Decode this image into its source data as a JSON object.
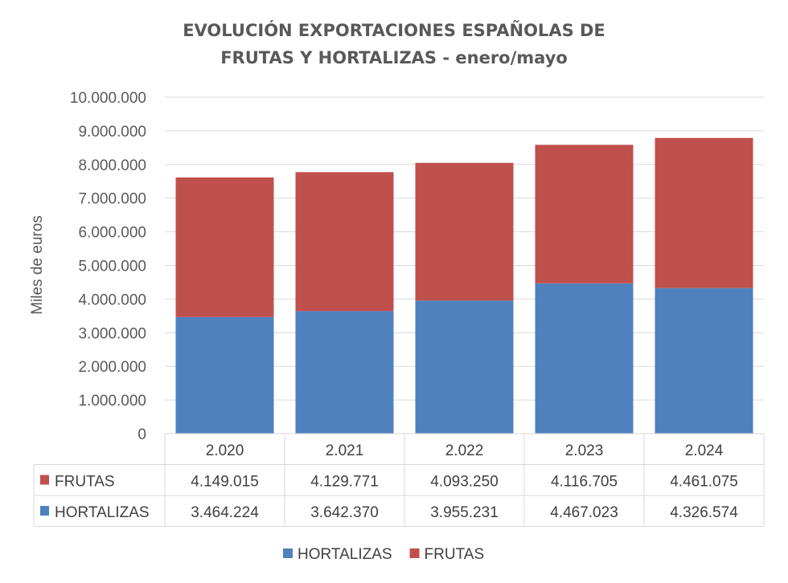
{
  "chart_data": {
    "type": "bar",
    "stacked": true,
    "title": "EVOLUCIÓN EXPORTACIONES ESPAÑOLAS DE FRUTAS Y HORTALIZAS - enero/mayo",
    "title_lines": [
      "EVOLUCIÓN EXPORTACIONES ESPAÑOLAS DE",
      "FRUTAS Y HORTALIZAS - enero/mayo"
    ],
    "xlabel": "",
    "ylabel": "Miles de euros",
    "ylim": [
      0,
      10000000
    ],
    "yticks": [
      0,
      1000000,
      2000000,
      3000000,
      4000000,
      5000000,
      6000000,
      7000000,
      8000000,
      9000000,
      10000000
    ],
    "ytick_labels": [
      "0",
      "1.000.000",
      "2.000.000",
      "3.000.000",
      "4.000.000",
      "5.000.000",
      "6.000.000",
      "7.000.000",
      "8.000.000",
      "9.000.000",
      "10.000.000"
    ],
    "grid": true,
    "legend_position": "bottom",
    "categories": [
      "2.020",
      "2.021",
      "2.022",
      "2.023",
      "2.024"
    ],
    "series": [
      {
        "name": "HORTALIZAS",
        "color": "#4f81bd",
        "values": [
          3464224,
          3642370,
          3955231,
          4467023,
          4326574
        ],
        "labels": [
          "3.464.224",
          "3.642.370",
          "3.955.231",
          "4.467.023",
          "4.326.574"
        ]
      },
      {
        "name": "FRUTAS",
        "color": "#c0504d",
        "values": [
          4149015,
          4129771,
          4093250,
          4116705,
          4461075
        ],
        "labels": [
          "4.149.015",
          "4.129.771",
          "4.093.250",
          "4.116.705",
          "4.461.075"
        ]
      }
    ],
    "table_row_order": [
      "FRUTAS",
      "HORTALIZAS"
    ]
  }
}
